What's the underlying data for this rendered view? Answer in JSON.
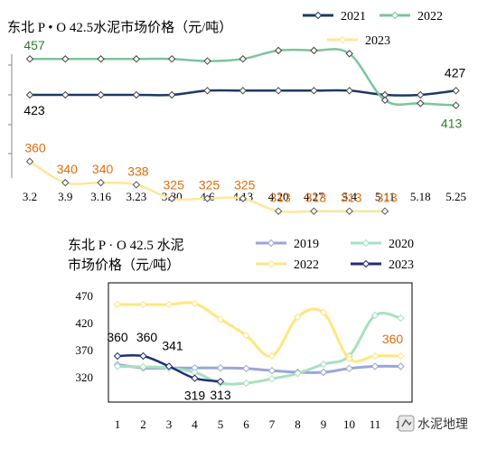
{
  "chart_data": [
    {
      "type": "line",
      "title": "东北 P • O 42.5水泥市场价格（元/吨）",
      "categories": [
        "3.2",
        "3.9",
        "3.16",
        "3.23",
        "3.30",
        "4.6",
        "4.13",
        "4.20",
        "4.27",
        "5.4",
        "5.11",
        "5.18",
        "5.25"
      ],
      "colors": {
        "2021": "#1f3864",
        "2022": "#7cc49b",
        "2023": "#ffe699"
      },
      "series": [
        {
          "name": "2021",
          "values": [
            423,
            423,
            423,
            423,
            423,
            427,
            427,
            427,
            427,
            427,
            423,
            423,
            427
          ]
        },
        {
          "name": "2022",
          "values": [
            457,
            457,
            457,
            457,
            457,
            455,
            457,
            465,
            465,
            462,
            418,
            415,
            413
          ]
        },
        {
          "name": "2023",
          "values": [
            360,
            340,
            340,
            338,
            325,
            325,
            325,
            313,
            313,
            313,
            313,
            null,
            null
          ]
        }
      ],
      "data_labels": {
        "2022_first": "457",
        "2021_first": "423",
        "2021_last": "427",
        "2022_last": "413",
        "2023": [
          "360",
          "340",
          "340",
          "338",
          "325",
          "325",
          "325",
          "313",
          "313",
          "313",
          "313"
        ]
      },
      "legend": [
        "2021",
        "2022",
        "2023"
      ],
      "legend_position": "top-right",
      "grid": false
    },
    {
      "type": "line",
      "title_lines": [
        "东北 P · O 42.5 水泥",
        "市场价格（元/吨）"
      ],
      "categories": [
        "1",
        "2",
        "3",
        "4",
        "5",
        "6",
        "7",
        "8",
        "9",
        "10",
        "11",
        "12"
      ],
      "yticks": [
        "470",
        "420",
        "370",
        "320"
      ],
      "ylim": [
        285,
        485
      ],
      "colors": {
        "2019": "#9aa6d6",
        "2020": "#a8e0c0",
        "2022": "#ffe680",
        "2023": "#1f2e7a"
      },
      "series": [
        {
          "name": "2019",
          "values": [
            344,
            338,
            338,
            338,
            338,
            337,
            333,
            330,
            330,
            337,
            341,
            341
          ]
        },
        {
          "name": "2020",
          "values": [
            341,
            340,
            338,
            330,
            310,
            310,
            318,
            328,
            345,
            360,
            435,
            430
          ]
        },
        {
          "name": "2022",
          "values": [
            455,
            455,
            455,
            457,
            428,
            398,
            360,
            432,
            440,
            355,
            360,
            360
          ]
        },
        {
          "name": "2023",
          "values": [
            360,
            360,
            341,
            319,
            313,
            null,
            null,
            null,
            null,
            null,
            null,
            null
          ]
        }
      ],
      "data_labels": {
        "2023": [
          "360",
          "360",
          "341",
          "319",
          "313"
        ],
        "2022_last": "360"
      },
      "legend": [
        "2019",
        "2020",
        "2022",
        "2023"
      ],
      "legend_position": "top-right",
      "grid": false
    }
  ],
  "watermark": "水泥地理"
}
